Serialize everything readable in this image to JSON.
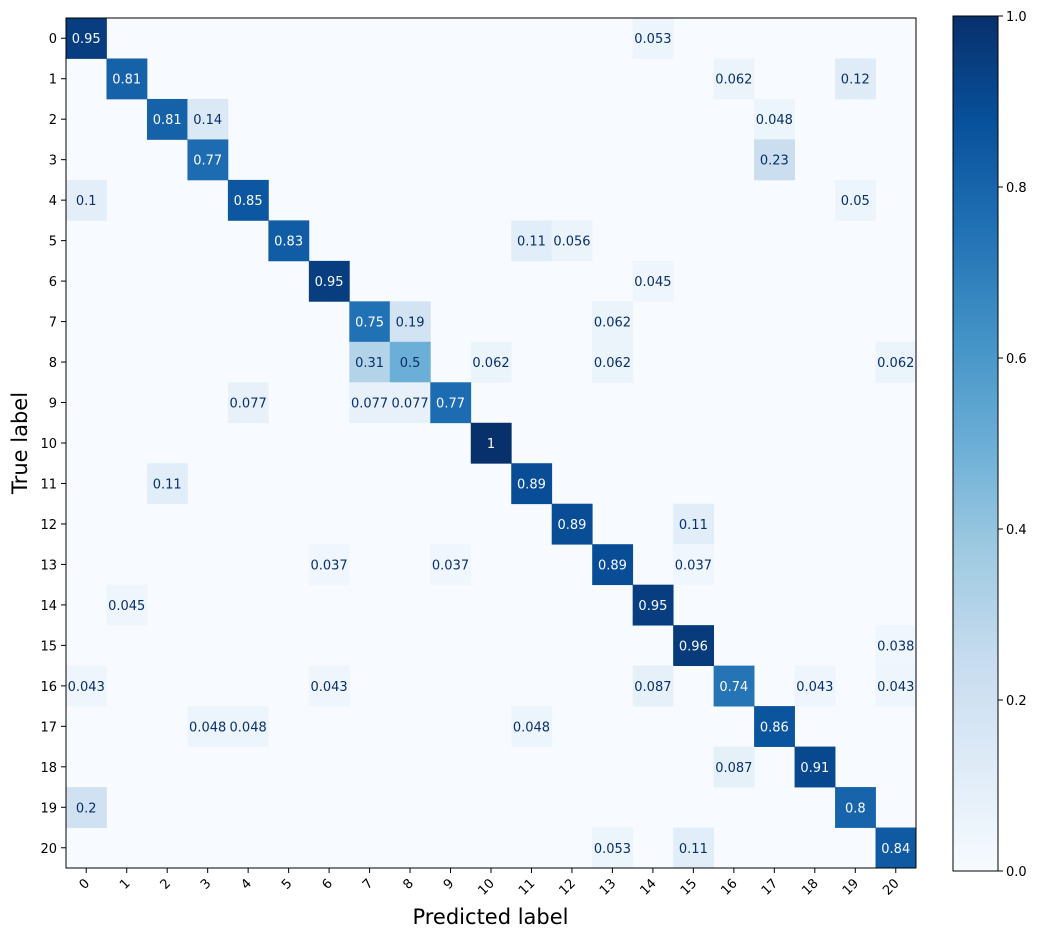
{
  "chart_data": {
    "type": "heatmap",
    "title": "",
    "xlabel": "Predicted label",
    "ylabel": "True label",
    "x_categories": [
      "0",
      "1",
      "2",
      "3",
      "4",
      "5",
      "6",
      "7",
      "8",
      "9",
      "10",
      "11",
      "12",
      "13",
      "14",
      "15",
      "16",
      "17",
      "18",
      "19",
      "20"
    ],
    "y_categories": [
      "0",
      "1",
      "2",
      "3",
      "4",
      "5",
      "6",
      "7",
      "8",
      "9",
      "10",
      "11",
      "12",
      "13",
      "14",
      "15",
      "16",
      "17",
      "18",
      "19",
      "20"
    ],
    "colormap": "Blues",
    "colorbar": {
      "min": 0.0,
      "max": 1.0,
      "ticks": [
        "0.0",
        "0.2",
        "0.4",
        "0.6",
        "0.8",
        "1.0"
      ]
    },
    "cells": [
      {
        "row": 0,
        "col": 0,
        "label": "0.95"
      },
      {
        "row": 0,
        "col": 14,
        "label": "0.053"
      },
      {
        "row": 1,
        "col": 1,
        "label": "0.81"
      },
      {
        "row": 1,
        "col": 16,
        "label": "0.062"
      },
      {
        "row": 1,
        "col": 19,
        "label": "0.12"
      },
      {
        "row": 2,
        "col": 2,
        "label": "0.81"
      },
      {
        "row": 2,
        "col": 3,
        "label": "0.14"
      },
      {
        "row": 2,
        "col": 17,
        "label": "0.048"
      },
      {
        "row": 3,
        "col": 3,
        "label": "0.77"
      },
      {
        "row": 3,
        "col": 17,
        "label": "0.23"
      },
      {
        "row": 4,
        "col": 0,
        "label": "0.1"
      },
      {
        "row": 4,
        "col": 4,
        "label": "0.85"
      },
      {
        "row": 4,
        "col": 19,
        "label": "0.05"
      },
      {
        "row": 5,
        "col": 5,
        "label": "0.83"
      },
      {
        "row": 5,
        "col": 11,
        "label": "0.11"
      },
      {
        "row": 5,
        "col": 12,
        "label": "0.056"
      },
      {
        "row": 6,
        "col": 6,
        "label": "0.95"
      },
      {
        "row": 6,
        "col": 14,
        "label": "0.045"
      },
      {
        "row": 7,
        "col": 7,
        "label": "0.75"
      },
      {
        "row": 7,
        "col": 8,
        "label": "0.19"
      },
      {
        "row": 7,
        "col": 13,
        "label": "0.062"
      },
      {
        "row": 8,
        "col": 7,
        "label": "0.31"
      },
      {
        "row": 8,
        "col": 8,
        "label": "0.5"
      },
      {
        "row": 8,
        "col": 10,
        "label": "0.062"
      },
      {
        "row": 8,
        "col": 13,
        "label": "0.062"
      },
      {
        "row": 8,
        "col": 20,
        "label": "0.062"
      },
      {
        "row": 9,
        "col": 4,
        "label": "0.077"
      },
      {
        "row": 9,
        "col": 7,
        "label": "0.077"
      },
      {
        "row": 9,
        "col": 8,
        "label": "0.077"
      },
      {
        "row": 9,
        "col": 9,
        "label": "0.77"
      },
      {
        "row": 10,
        "col": 10,
        "label": "1"
      },
      {
        "row": 11,
        "col": 2,
        "label": "0.11"
      },
      {
        "row": 11,
        "col": 11,
        "label": "0.89"
      },
      {
        "row": 12,
        "col": 12,
        "label": "0.89"
      },
      {
        "row": 12,
        "col": 15,
        "label": "0.11"
      },
      {
        "row": 13,
        "col": 6,
        "label": "0.037"
      },
      {
        "row": 13,
        "col": 9,
        "label": "0.037"
      },
      {
        "row": 13,
        "col": 13,
        "label": "0.89"
      },
      {
        "row": 13,
        "col": 15,
        "label": "0.037"
      },
      {
        "row": 14,
        "col": 1,
        "label": "0.045"
      },
      {
        "row": 14,
        "col": 14,
        "label": "0.95"
      },
      {
        "row": 15,
        "col": 15,
        "label": "0.96"
      },
      {
        "row": 15,
        "col": 20,
        "label": "0.038"
      },
      {
        "row": 16,
        "col": 0,
        "label": "0.043"
      },
      {
        "row": 16,
        "col": 6,
        "label": "0.043"
      },
      {
        "row": 16,
        "col": 14,
        "label": "0.087"
      },
      {
        "row": 16,
        "col": 16,
        "label": "0.74"
      },
      {
        "row": 16,
        "col": 18,
        "label": "0.043"
      },
      {
        "row": 16,
        "col": 20,
        "label": "0.043"
      },
      {
        "row": 17,
        "col": 3,
        "label": "0.048"
      },
      {
        "row": 17,
        "col": 4,
        "label": "0.048"
      },
      {
        "row": 17,
        "col": 11,
        "label": "0.048"
      },
      {
        "row": 17,
        "col": 17,
        "label": "0.86"
      },
      {
        "row": 18,
        "col": 16,
        "label": "0.087"
      },
      {
        "row": 18,
        "col": 18,
        "label": "0.91"
      },
      {
        "row": 19,
        "col": 0,
        "label": "0.2"
      },
      {
        "row": 19,
        "col": 19,
        "label": "0.8"
      },
      {
        "row": 20,
        "col": 13,
        "label": "0.053"
      },
      {
        "row": 20,
        "col": 15,
        "label": "0.11"
      },
      {
        "row": 20,
        "col": 20,
        "label": "0.84"
      }
    ]
  }
}
